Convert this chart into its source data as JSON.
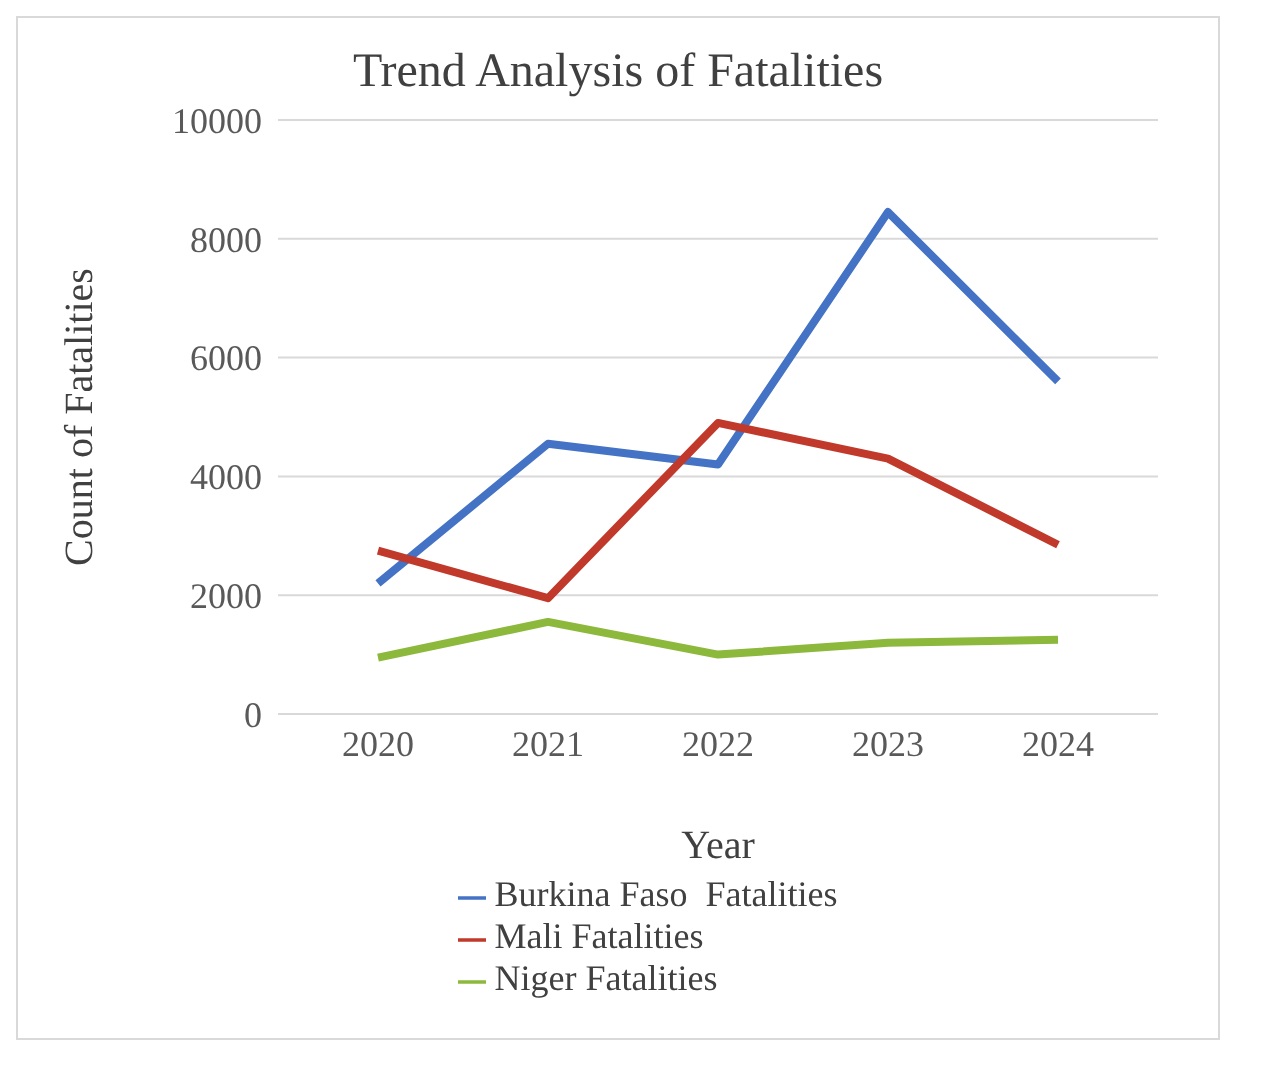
{
  "chart_data": {
    "type": "line",
    "title": "Trend Analysis of Fatalities",
    "xlabel": "Year",
    "ylabel": "Count of Fatalities",
    "categories": [
      "2020",
      "2021",
      "2022",
      "2023",
      "2024"
    ],
    "series": [
      {
        "name": "Burkina Faso  Fatalities",
        "color": "#4472c4",
        "values": [
          2200,
          4550,
          4200,
          8450,
          5600
        ]
      },
      {
        "name": "Mali Fatalities",
        "color": "#c0392b",
        "values": [
          2750,
          1950,
          4900,
          4300,
          2850
        ]
      },
      {
        "name": "Niger Fatalities",
        "color": "#8cb83c",
        "values": [
          950,
          1550,
          1000,
          1200,
          1250
        ]
      }
    ],
    "ylim": [
      0,
      10000
    ],
    "yticks": [
      0,
      2000,
      4000,
      6000,
      8000,
      10000
    ],
    "grid": "y",
    "legend": "bottom",
    "marker": "none",
    "line_style": "solid"
  }
}
